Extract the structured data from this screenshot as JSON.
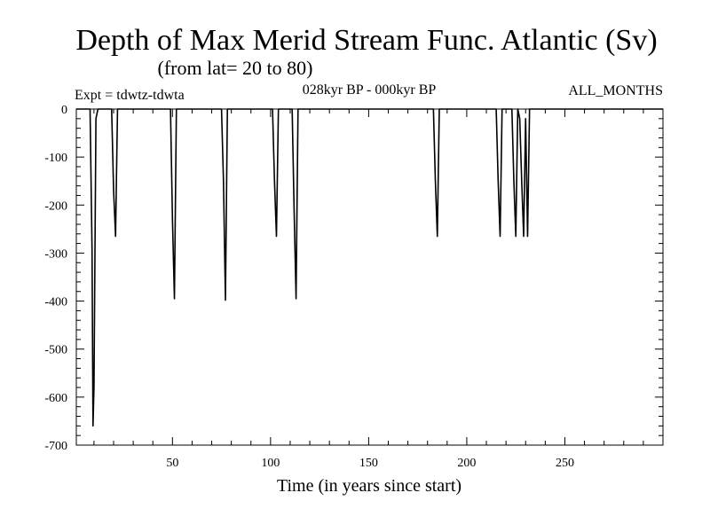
{
  "chart_data": {
    "type": "line",
    "title": "Depth of Max Merid Stream Func. Atlantic (Sv)",
    "subtitle": "(from lat= 20 to 80)",
    "experiment": "Expt = tdwtz-tdwta",
    "period": "028kyr BP - 000kyr BP",
    "months": "ALL_MONTHS",
    "xlabel": "Time (in years since start)",
    "ylabel": "",
    "xlim": [
      1,
      300
    ],
    "ylim": [
      -700,
      0
    ],
    "x_ticks": [
      50,
      100,
      150,
      200,
      250
    ],
    "y_ticks": [
      0,
      -100,
      -200,
      -300,
      -400,
      -500,
      -600,
      -700
    ],
    "x_tick_labels": [
      "50",
      "100",
      "150",
      "200",
      "250"
    ],
    "y_tick_labels": [
      "0",
      "-100",
      "-200",
      "-300",
      "-400",
      "-500",
      "-600",
      "-700"
    ],
    "grid": false,
    "line_color": "#000000",
    "series": [
      {
        "x": [
          1,
          8,
          9,
          9.5,
          10,
          10.5,
          11,
          12,
          19,
          20,
          21,
          22,
          49,
          50,
          51,
          52,
          75,
          76,
          77,
          78,
          101,
          102,
          103,
          104,
          111,
          112,
          113,
          114,
          183,
          184,
          185,
          186,
          215,
          216,
          217,
          218,
          223,
          224,
          225,
          226,
          227,
          228,
          229,
          230,
          231,
          232,
          300
        ],
        "y": [
          0,
          0,
          -290,
          -660,
          -580,
          -300,
          -20,
          0,
          0,
          -170,
          -265,
          0,
          0,
          -230,
          -395,
          0,
          0,
          -150,
          -398,
          0,
          0,
          -150,
          -265,
          0,
          0,
          -210,
          -395,
          0,
          0,
          -150,
          -265,
          0,
          0,
          -150,
          -265,
          0,
          0,
          -150,
          -265,
          0,
          -20,
          -150,
          -265,
          -20,
          -265,
          0,
          0
        ]
      }
    ]
  }
}
